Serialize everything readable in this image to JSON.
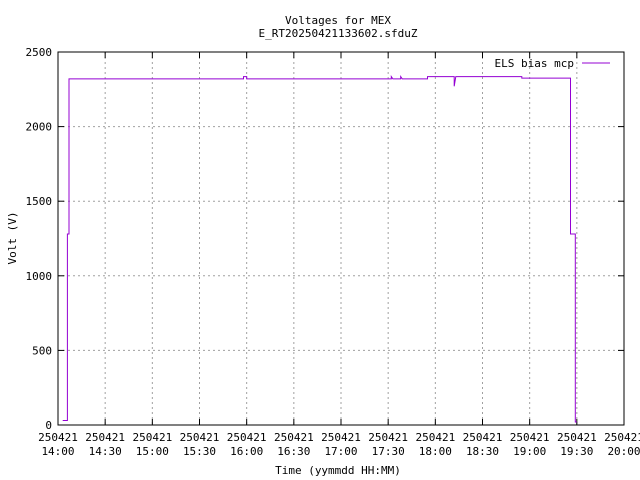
{
  "chart_data": {
    "type": "line",
    "title": "Voltages for MEX",
    "subtitle": "E_RT20250421133602.sfduZ",
    "xlabel": "Time (yymmdd HH:MM)",
    "ylabel": "Volt (V)",
    "xlim": [
      "14:00",
      "20:00"
    ],
    "ylim": [
      0,
      2500
    ],
    "grid": true,
    "legend_position": "top-right",
    "x_ticks": [
      {
        "date": "250421",
        "time": "14:00"
      },
      {
        "date": "250421",
        "time": "14:30"
      },
      {
        "date": "250421",
        "time": "15:00"
      },
      {
        "date": "250421",
        "time": "15:30"
      },
      {
        "date": "250421",
        "time": "16:00"
      },
      {
        "date": "250421",
        "time": "16:30"
      },
      {
        "date": "250421",
        "time": "17:00"
      },
      {
        "date": "250421",
        "time": "17:30"
      },
      {
        "date": "250421",
        "time": "18:00"
      },
      {
        "date": "250421",
        "time": "18:30"
      },
      {
        "date": "250421",
        "time": "19:00"
      },
      {
        "date": "250421",
        "time": "19:30"
      },
      {
        "date": "250421",
        "time": "20:00"
      }
    ],
    "y_ticks": [
      0,
      500,
      1000,
      1500,
      2000,
      2500
    ],
    "series": [
      {
        "name": "ELS bias mcp",
        "color": "#9400d3",
        "points": [
          [
            "14:03",
            30
          ],
          [
            "14:06",
            30
          ],
          [
            "14:06",
            1280
          ],
          [
            "14:07",
            1280
          ],
          [
            "14:07",
            2320
          ],
          [
            "15:58",
            2320
          ],
          [
            "15:58",
            2335
          ],
          [
            "16:00",
            2335
          ],
          [
            "16:00",
            2320
          ],
          [
            "17:32",
            2320
          ],
          [
            "17:32",
            2335
          ],
          [
            "17:33",
            2320
          ],
          [
            "17:38",
            2320
          ],
          [
            "17:38",
            2335
          ],
          [
            "17:39",
            2320
          ],
          [
            "17:55",
            2320
          ],
          [
            "17:55",
            2335
          ],
          [
            "18:12",
            2335
          ],
          [
            "18:12",
            2270
          ],
          [
            "18:13",
            2335
          ],
          [
            "18:55",
            2335
          ],
          [
            "18:55",
            2325
          ],
          [
            "19:26",
            2325
          ],
          [
            "19:26",
            1280
          ],
          [
            "19:29",
            1280
          ],
          [
            "19:29",
            20
          ],
          [
            "19:30",
            20
          ]
        ]
      }
    ]
  }
}
